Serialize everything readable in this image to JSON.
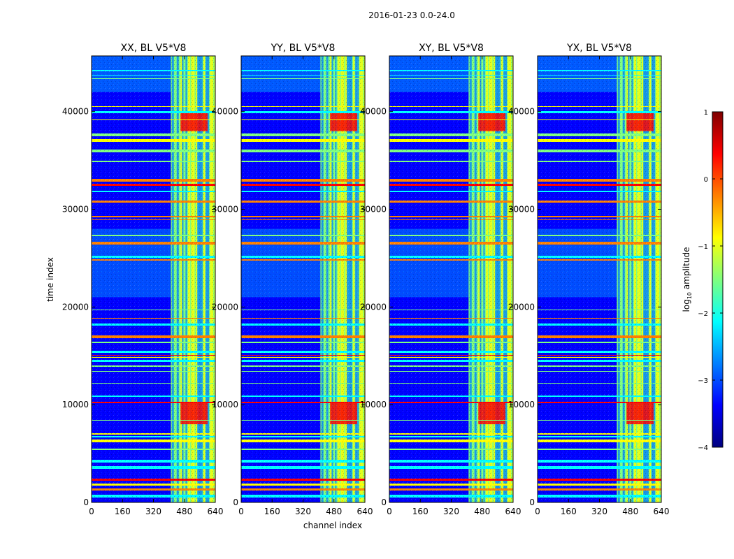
{
  "figure": {
    "suptitle": "2016-01-23 0.0-24.0",
    "xlabel": "channel index",
    "ylabel": "time index"
  },
  "colorbar": {
    "label_prefix": "log",
    "label_sub": "10",
    "label_suffix": " amplitude",
    "ticks": [
      1,
      0,
      -1,
      -2,
      -3,
      -4
    ],
    "tick_labels": [
      "1",
      "0",
      "−1",
      "−2",
      "−3",
      "−4"
    ],
    "vmin": -4,
    "vmax": 1,
    "colormap": "jet",
    "colors": [
      "#00007f",
      "#0000ff",
      "#007fff",
      "#00ffff",
      "#7fff7f",
      "#ffff00",
      "#ff7f00",
      "#ff0000",
      "#7f0000"
    ]
  },
  "chart_data": {
    "type": "heatmap",
    "colormap": "jet",
    "x_range": [
      0,
      640
    ],
    "y_range": [
      0,
      45700
    ],
    "x_ticks": [
      0,
      160,
      320,
      480,
      640
    ],
    "x_tick_labels": [
      "0",
      "160",
      "320",
      "480",
      "640"
    ],
    "y_ticks": [
      0,
      10000,
      20000,
      30000,
      40000
    ],
    "y_tick_labels": [
      "0",
      "10000",
      "20000",
      "30000",
      "40000"
    ],
    "panels": [
      {
        "title": "XX, BL V5*V8"
      },
      {
        "title": "YY, BL V5*V8"
      },
      {
        "title": "XY, BL V5*V8"
      },
      {
        "title": "YX, BL V5*V8"
      }
    ],
    "value_range_log10": [
      -4,
      1
    ],
    "features": {
      "background_log_amplitude": -3.2,
      "high_band_channels": [
        410,
        640
      ],
      "high_band_log_amplitude": -1.2,
      "hot_band_channels": [
        460,
        600
      ],
      "hot_band_time_ranges": [
        [
          8000,
          10300
        ],
        [
          38000,
          40000
        ]
      ],
      "hot_band_log_amplitude": 0.1
    }
  }
}
